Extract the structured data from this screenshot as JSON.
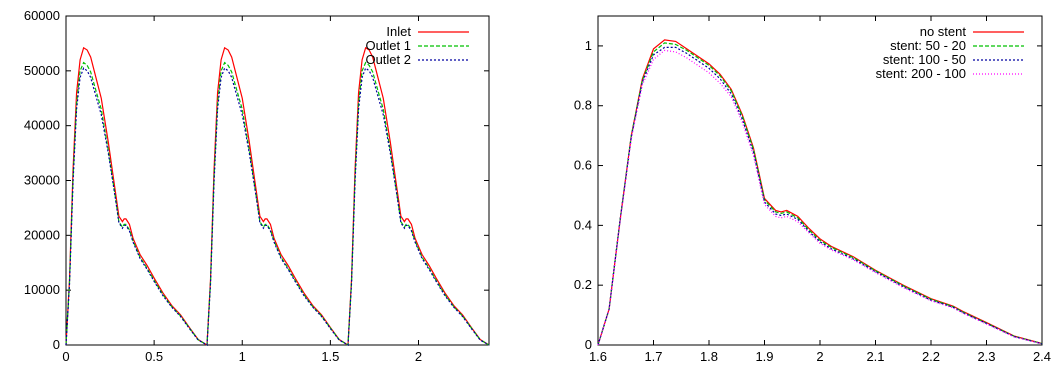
{
  "chart_data": [
    {
      "type": "line",
      "title": "",
      "xlabel": "",
      "ylabel": "",
      "xlim": [
        0,
        2.4
      ],
      "ylim": [
        0,
        60000
      ],
      "xticks": [
        0,
        0.5,
        1,
        1.5,
        2
      ],
      "xtick_labels": [
        "0",
        "0.5",
        "1",
        "1.5",
        "2"
      ],
      "yticks": [
        0,
        10000,
        20000,
        30000,
        40000,
        50000,
        60000
      ],
      "ytick_labels": [
        "0",
        "10000",
        "20000",
        "30000",
        "40000",
        "50000",
        "60000"
      ],
      "grid": false,
      "legend_position": "top-right",
      "series": [
        {
          "name": "Inlet",
          "color": "#ff0000",
          "dash": "",
          "x": [
            0,
            0.02,
            0.04,
            0.06,
            0.08,
            0.1,
            0.12,
            0.14,
            0.16,
            0.2,
            0.24,
            0.28,
            0.3,
            0.32,
            0.33,
            0.34,
            0.36,
            0.38,
            0.4,
            0.42,
            0.46,
            0.5,
            0.55,
            0.6,
            0.65,
            0.7,
            0.75,
            0.8,
            0.82,
            0.84,
            0.86,
            0.88,
            0.9,
            0.92,
            0.94,
            0.96,
            1.0,
            1.04,
            1.08,
            1.1,
            1.12,
            1.13,
            1.14,
            1.16,
            1.18,
            1.2,
            1.22,
            1.26,
            1.3,
            1.35,
            1.4,
            1.45,
            1.5,
            1.55,
            1.6,
            1.62,
            1.64,
            1.66,
            1.68,
            1.7,
            1.72,
            1.74,
            1.76,
            1.8,
            1.84,
            1.88,
            1.9,
            1.92,
            1.93,
            1.94,
            1.96,
            1.98,
            2.0,
            2.02,
            2.06,
            2.1,
            2.15,
            2.2,
            2.25,
            2.3,
            2.35,
            2.4
          ],
          "y": [
            0,
            12000,
            32000,
            46000,
            52000,
            54200,
            53800,
            52500,
            50000,
            45000,
            37000,
            28000,
            23500,
            22500,
            23000,
            23000,
            22000,
            19500,
            18000,
            16500,
            14500,
            12200,
            9500,
            7200,
            5500,
            3200,
            1000,
            0,
            12000,
            32000,
            46000,
            52000,
            54200,
            53800,
            52500,
            50000,
            45000,
            37000,
            28000,
            23500,
            22500,
            23000,
            23000,
            22000,
            19500,
            18000,
            16500,
            14500,
            12200,
            9500,
            7200,
            5500,
            3200,
            1000,
            0,
            12000,
            32000,
            46000,
            52000,
            54200,
            53800,
            52500,
            50000,
            45000,
            37000,
            28000,
            23500,
            22500,
            23000,
            23000,
            22000,
            19500,
            18000,
            16500,
            14500,
            12200,
            9500,
            7200,
            5500,
            3200,
            1000,
            0
          ]
        },
        {
          "name": "Outlet 1",
          "color": "#00c000",
          "dash": "4,2",
          "x": [
            0,
            0.02,
            0.04,
            0.06,
            0.08,
            0.1,
            0.12,
            0.14,
            0.16,
            0.2,
            0.24,
            0.28,
            0.3,
            0.32,
            0.33,
            0.34,
            0.36,
            0.38,
            0.4,
            0.42,
            0.46,
            0.5,
            0.55,
            0.6,
            0.65,
            0.7,
            0.75,
            0.8,
            0.82,
            0.84,
            0.86,
            0.88,
            0.9,
            0.92,
            0.94,
            0.96,
            1.0,
            1.04,
            1.08,
            1.1,
            1.12,
            1.13,
            1.14,
            1.16,
            1.18,
            1.2,
            1.22,
            1.26,
            1.3,
            1.35,
            1.4,
            1.45,
            1.5,
            1.55,
            1.6,
            1.62,
            1.64,
            1.66,
            1.68,
            1.7,
            1.72,
            1.74,
            1.76,
            1.8,
            1.84,
            1.88,
            1.9,
            1.92,
            1.93,
            1.94,
            1.96,
            1.98,
            2.0,
            2.02,
            2.06,
            2.1,
            2.15,
            2.2,
            2.25,
            2.3,
            2.35,
            2.4
          ],
          "y": [
            0,
            11500,
            30500,
            44000,
            50000,
            51500,
            51000,
            49800,
            47500,
            43000,
            35500,
            27000,
            22500,
            21500,
            22000,
            22000,
            21000,
            19000,
            17500,
            16000,
            14000,
            11800,
            9200,
            7000,
            5300,
            3100,
            950,
            0,
            11500,
            30500,
            44000,
            50000,
            51500,
            51000,
            49800,
            47500,
            43000,
            35500,
            27000,
            22500,
            21500,
            22000,
            22000,
            21000,
            19000,
            17500,
            16000,
            14000,
            11800,
            9200,
            7000,
            5300,
            3100,
            950,
            0,
            11500,
            30500,
            44000,
            50000,
            51500,
            51000,
            49800,
            47500,
            43000,
            35500,
            27000,
            22500,
            21500,
            22000,
            22000,
            21000,
            19000,
            17500,
            16000,
            14000,
            11800,
            9200,
            7000,
            5300,
            3100,
            950,
            0
          ]
        },
        {
          "name": "Outlet 2",
          "color": "#0000a0",
          "dash": "2,2",
          "x": [
            0,
            0.02,
            0.04,
            0.06,
            0.08,
            0.1,
            0.12,
            0.14,
            0.16,
            0.2,
            0.24,
            0.28,
            0.3,
            0.32,
            0.33,
            0.34,
            0.36,
            0.38,
            0.4,
            0.42,
            0.46,
            0.5,
            0.55,
            0.6,
            0.65,
            0.7,
            0.75,
            0.8,
            0.82,
            0.84,
            0.86,
            0.88,
            0.9,
            0.92,
            0.94,
            0.96,
            1.0,
            1.04,
            1.08,
            1.1,
            1.12,
            1.13,
            1.14,
            1.16,
            1.18,
            1.2,
            1.22,
            1.26,
            1.3,
            1.35,
            1.4,
            1.45,
            1.5,
            1.55,
            1.6,
            1.62,
            1.64,
            1.66,
            1.68,
            1.7,
            1.72,
            1.74,
            1.76,
            1.8,
            1.84,
            1.88,
            1.9,
            1.92,
            1.93,
            1.94,
            1.96,
            1.98,
            2.0,
            2.02,
            2.06,
            2.1,
            2.15,
            2.2,
            2.25,
            2.3,
            2.35,
            2.4
          ],
          "y": [
            0,
            11200,
            29800,
            43000,
            48800,
            50500,
            50000,
            48800,
            46500,
            42000,
            35000,
            26800,
            22300,
            21300,
            21800,
            21800,
            20800,
            18800,
            17300,
            15800,
            13800,
            11600,
            9000,
            6900,
            5200,
            3000,
            900,
            0,
            11200,
            29800,
            43000,
            48800,
            50500,
            50000,
            48800,
            46500,
            42000,
            35000,
            26800,
            22300,
            21300,
            21800,
            21800,
            20800,
            18800,
            17300,
            15800,
            13800,
            11600,
            9000,
            6900,
            5200,
            3000,
            900,
            0,
            11200,
            29800,
            43000,
            48800,
            50500,
            50000,
            48800,
            46500,
            42000,
            35000,
            26800,
            22300,
            21300,
            21800,
            21800,
            20800,
            18800,
            17300,
            15800,
            13800,
            11600,
            9000,
            6900,
            5200,
            3000,
            900,
            0
          ]
        }
      ]
    },
    {
      "type": "line",
      "title": "",
      "xlabel": "",
      "ylabel": "",
      "xlim": [
        1.6,
        2.4
      ],
      "ylim": [
        0,
        1.1
      ],
      "xticks": [
        1.6,
        1.7,
        1.8,
        1.9,
        2,
        2.1,
        2.2,
        2.3,
        2.4
      ],
      "xtick_labels": [
        "1.6",
        "1.7",
        "1.8",
        "1.9",
        "2",
        "2.1",
        "2.2",
        "2.3",
        "2.4"
      ],
      "yticks": [
        0,
        0.2,
        0.4,
        0.6,
        0.8,
        1
      ],
      "ytick_labels": [
        "0",
        "0.2",
        "0.4",
        "0.6",
        "0.8",
        "1"
      ],
      "grid": false,
      "legend_position": "top-right",
      "series": [
        {
          "name": "no stent",
          "color": "#ff0000",
          "dash": "",
          "x": [
            1.6,
            1.62,
            1.64,
            1.66,
            1.68,
            1.7,
            1.72,
            1.74,
            1.76,
            1.8,
            1.82,
            1.84,
            1.86,
            1.88,
            1.9,
            1.92,
            1.93,
            1.94,
            1.96,
            1.98,
            2.0,
            2.02,
            2.06,
            2.1,
            2.15,
            2.2,
            2.24,
            2.26,
            2.3,
            2.35,
            2.4
          ],
          "y": [
            0,
            0.12,
            0.42,
            0.7,
            0.89,
            0.99,
            1.02,
            1.015,
            0.99,
            0.94,
            0.905,
            0.855,
            0.77,
            0.66,
            0.49,
            0.45,
            0.445,
            0.45,
            0.43,
            0.39,
            0.355,
            0.33,
            0.295,
            0.25,
            0.2,
            0.155,
            0.13,
            0.11,
            0.075,
            0.03,
            0.005
          ]
        },
        {
          "name": "stent: 50 - 20",
          "color": "#00c000",
          "dash": "4,2",
          "x": [
            1.6,
            1.62,
            1.64,
            1.66,
            1.68,
            1.7,
            1.72,
            1.74,
            1.76,
            1.8,
            1.82,
            1.84,
            1.86,
            1.88,
            1.9,
            1.92,
            1.93,
            1.94,
            1.96,
            1.98,
            2.0,
            2.02,
            2.06,
            2.1,
            2.15,
            2.2,
            2.24,
            2.26,
            2.3,
            2.35,
            2.4
          ],
          "y": [
            0,
            0.12,
            0.42,
            0.7,
            0.885,
            0.98,
            1.01,
            1.005,
            0.985,
            0.935,
            0.9,
            0.85,
            0.765,
            0.655,
            0.485,
            0.445,
            0.44,
            0.445,
            0.425,
            0.385,
            0.35,
            0.327,
            0.292,
            0.248,
            0.198,
            0.153,
            0.128,
            0.108,
            0.073,
            0.029,
            0.005
          ]
        },
        {
          "name": "stent: 100 - 50",
          "color": "#0000a0",
          "dash": "2,2",
          "x": [
            1.6,
            1.62,
            1.64,
            1.66,
            1.68,
            1.7,
            1.72,
            1.74,
            1.76,
            1.8,
            1.82,
            1.84,
            1.86,
            1.88,
            1.9,
            1.92,
            1.93,
            1.94,
            1.96,
            1.98,
            2.0,
            2.02,
            2.06,
            2.1,
            2.15,
            2.2,
            2.24,
            2.26,
            2.3,
            2.35,
            2.4
          ],
          "y": [
            0,
            0.12,
            0.42,
            0.695,
            0.88,
            0.97,
            0.995,
            0.995,
            0.975,
            0.925,
            0.89,
            0.84,
            0.755,
            0.645,
            0.478,
            0.438,
            0.433,
            0.438,
            0.42,
            0.38,
            0.345,
            0.322,
            0.288,
            0.245,
            0.195,
            0.15,
            0.126,
            0.106,
            0.072,
            0.028,
            0.004
          ]
        },
        {
          "name": "stent: 200 - 100",
          "color": "#ff00ff",
          "dash": "1,2",
          "x": [
            1.6,
            1.62,
            1.64,
            1.66,
            1.68,
            1.7,
            1.72,
            1.74,
            1.76,
            1.8,
            1.82,
            1.84,
            1.86,
            1.88,
            1.9,
            1.92,
            1.93,
            1.94,
            1.96,
            1.98,
            2.0,
            2.02,
            2.06,
            2.1,
            2.15,
            2.2,
            2.24,
            2.26,
            2.3,
            2.35,
            2.4
          ],
          "y": [
            0,
            0.12,
            0.415,
            0.69,
            0.87,
            0.955,
            0.985,
            0.98,
            0.96,
            0.91,
            0.875,
            0.83,
            0.745,
            0.635,
            0.47,
            0.43,
            0.425,
            0.43,
            0.412,
            0.375,
            0.34,
            0.318,
            0.285,
            0.242,
            0.192,
            0.148,
            0.124,
            0.104,
            0.07,
            0.027,
            0.004
          ]
        }
      ]
    }
  ]
}
